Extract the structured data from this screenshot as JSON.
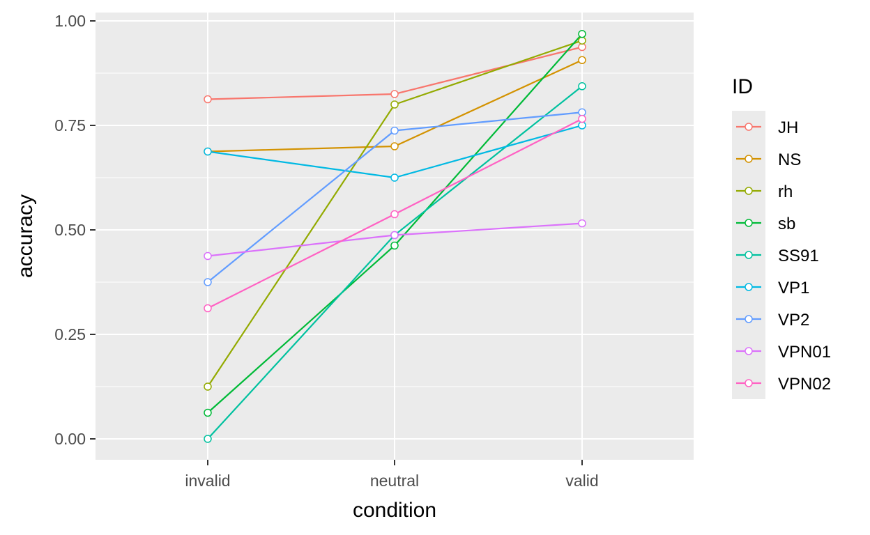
{
  "chart_data": {
    "type": "line",
    "xlabel": "condition",
    "ylabel": "accuracy",
    "categories": [
      "invalid",
      "neutral",
      "valid"
    ],
    "ylim": [
      -0.05,
      1.02
    ],
    "yticks": [
      0.0,
      0.25,
      0.5,
      0.75,
      1.0
    ],
    "ytick_labels": [
      "0.00",
      "0.25",
      "0.50",
      "0.75",
      "1.00"
    ],
    "grid": false,
    "legend": {
      "title": "ID",
      "placement": "right"
    },
    "series": [
      {
        "name": "JH",
        "color": "#F8766D",
        "values": [
          0.8125,
          0.825,
          0.9375
        ]
      },
      {
        "name": "NS",
        "color": "#D39200",
        "values": [
          0.6875,
          0.7,
          0.90625
        ]
      },
      {
        "name": "rh",
        "color": "#93AA00",
        "values": [
          0.125,
          0.8,
          0.953
        ]
      },
      {
        "name": "sb",
        "color": "#00BA38",
        "values": [
          0.0625,
          0.4625,
          0.96875
        ]
      },
      {
        "name": "SS91",
        "color": "#00C19F",
        "values": [
          0.0,
          0.4875,
          0.84375
        ]
      },
      {
        "name": "VP1",
        "color": "#00B9E3",
        "values": [
          0.6875,
          0.625,
          0.75
        ]
      },
      {
        "name": "VP2",
        "color": "#619CFF",
        "values": [
          0.375,
          0.7375,
          0.78125
        ]
      },
      {
        "name": "VPN01",
        "color": "#DB72FB",
        "values": [
          0.4375,
          0.4875,
          0.515625
        ]
      },
      {
        "name": "VPN02",
        "color": "#FF61C3",
        "values": [
          0.3125,
          0.5375,
          0.765625
        ]
      }
    ]
  }
}
